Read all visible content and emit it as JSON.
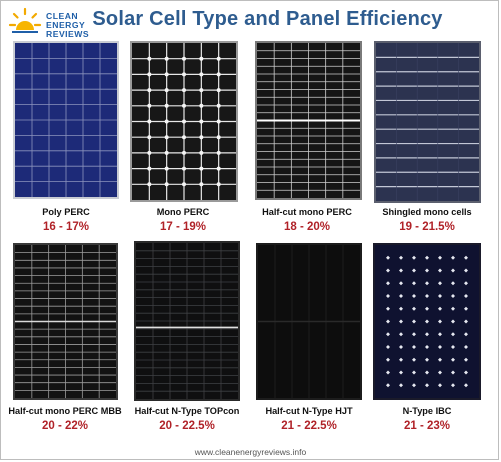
{
  "header": {
    "logo_lines": [
      "CLEAN",
      "ENERGY",
      "REVIEWS"
    ],
    "title": "Solar Cell Type and Panel Efficiency"
  },
  "panels": [
    {
      "label": "Poly PERC",
      "efficiency": "16 - 17%"
    },
    {
      "label": "Mono PERC",
      "efficiency": "17 - 19%"
    },
    {
      "label": "Half-cut mono PERC",
      "efficiency": "18 - 20%"
    },
    {
      "label": "Shingled  mono cells",
      "efficiency": "19 - 21.5%"
    },
    {
      "label": "Half-cut mono PERC MBB",
      "efficiency": "20 - 22%"
    },
    {
      "label": "Half-cut N-Type  TOPcon",
      "efficiency": "20 - 22.5%"
    },
    {
      "label": "Half-cut  N-Type HJT",
      "efficiency": "21 - 22.5%"
    },
    {
      "label": "N-Type IBC",
      "efficiency": "21 - 23%"
    }
  ],
  "footer": {
    "url": "www.cleanenergyreviews.info"
  },
  "colors": {
    "title": "#2e5c8f",
    "efficiency": "#b02228",
    "logo": "#1f5fa8"
  }
}
